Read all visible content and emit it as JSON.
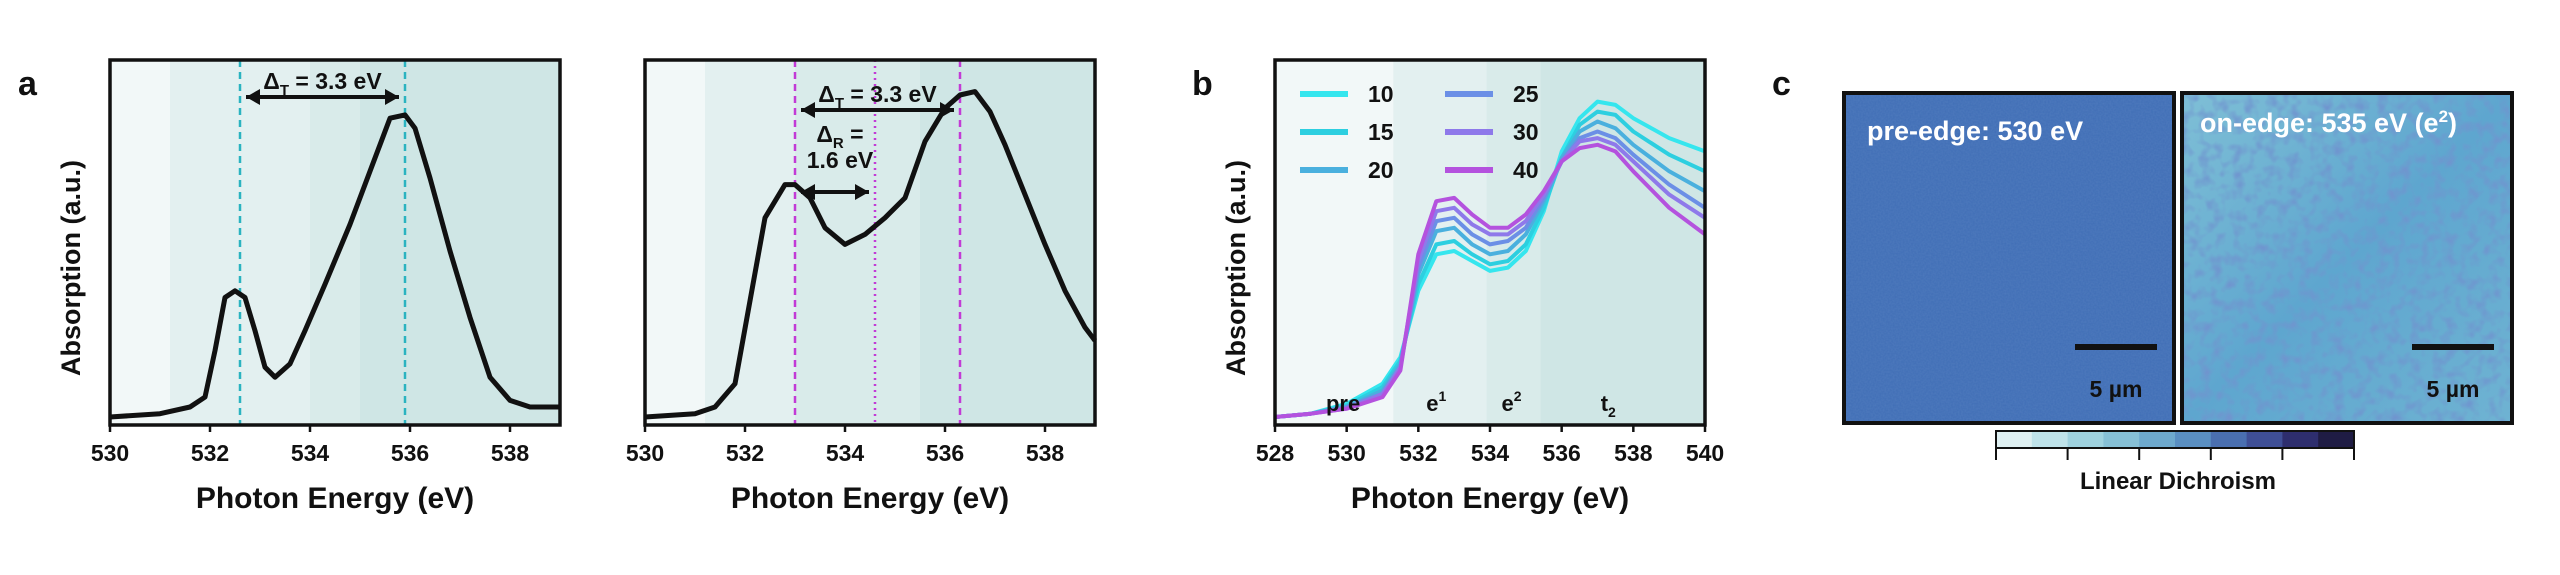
{
  "panel_letters": {
    "a": "a",
    "b": "b",
    "c": "c"
  },
  "colors": {
    "curve": "#111111",
    "teal_marker": "#2bb3c0",
    "magenta_marker": "#c23ad6",
    "bg_light": "#f2f8f8",
    "bg_mid": "#e3f0f0",
    "bg_dark": "#cfe6e5",
    "map_blue": "#3f6db5"
  },
  "chart_data": [
    {
      "id": "a-left",
      "type": "line",
      "xlabel": "Photon Energy (eV)",
      "ylabel": "Absorption (a.u.)",
      "xlim": [
        530,
        539
      ],
      "xticks": [
        530,
        532,
        534,
        536,
        538
      ],
      "ylim": [
        0,
        1
      ],
      "background_bands": [
        [
          530,
          531.2,
          "light"
        ],
        [
          531.2,
          534.0,
          "mid"
        ],
        [
          534.0,
          535.0,
          "mid"
        ],
        [
          535.0,
          539,
          "dark"
        ]
      ],
      "series": [
        {
          "x": [
            530,
            531,
            531.6,
            531.9,
            532.1,
            532.3,
            532.5,
            532.7,
            532.9,
            533.1,
            533.3,
            533.6,
            533.9,
            534.3,
            534.8,
            535.2,
            535.6,
            535.9,
            536.1,
            536.4,
            536.8,
            537.2,
            537.6,
            538.0,
            538.4,
            539
          ],
          "y": [
            0.0,
            0.01,
            0.03,
            0.06,
            0.2,
            0.36,
            0.38,
            0.36,
            0.26,
            0.15,
            0.12,
            0.16,
            0.26,
            0.4,
            0.58,
            0.74,
            0.9,
            0.91,
            0.87,
            0.72,
            0.5,
            0.3,
            0.12,
            0.05,
            0.03,
            0.03
          ]
        }
      ],
      "markers": [
        {
          "x": 532.6,
          "style": "dashed",
          "color": "teal"
        },
        {
          "x": 535.9,
          "style": "dashed",
          "color": "teal"
        }
      ],
      "annotations": [
        {
          "text": "Δ",
          "sub": "T",
          "rest": " = 3.3 eV",
          "from": 532.6,
          "to": 535.9
        }
      ]
    },
    {
      "id": "a-right",
      "type": "line",
      "xlabel": "Photon Energy (eV)",
      "ylabel": "",
      "xlim": [
        530,
        539
      ],
      "xticks": [
        530,
        532,
        534,
        536,
        538
      ],
      "ylim": [
        0,
        1
      ],
      "background_bands": [
        [
          530,
          531.2,
          "light"
        ],
        [
          531.2,
          533.0,
          "mid"
        ],
        [
          533.0,
          535.5,
          "mid"
        ],
        [
          535.5,
          539,
          "dark"
        ]
      ],
      "series": [
        {
          "x": [
            530,
            531,
            531.4,
            531.8,
            532.1,
            532.4,
            532.8,
            533.0,
            533.3,
            533.6,
            534.0,
            534.4,
            534.8,
            535.2,
            535.6,
            536.0,
            536.3,
            536.6,
            536.9,
            537.2,
            537.6,
            538.0,
            538.4,
            538.8,
            539
          ],
          "y": [
            0.0,
            0.01,
            0.03,
            0.1,
            0.35,
            0.6,
            0.7,
            0.7,
            0.66,
            0.57,
            0.52,
            0.55,
            0.6,
            0.66,
            0.83,
            0.93,
            0.97,
            0.98,
            0.92,
            0.82,
            0.67,
            0.52,
            0.38,
            0.27,
            0.23
          ]
        }
      ],
      "markers": [
        {
          "x": 533.0,
          "style": "dashed",
          "color": "magenta"
        },
        {
          "x": 534.6,
          "style": "dotted",
          "color": "magenta"
        },
        {
          "x": 536.3,
          "style": "dashed",
          "color": "magenta"
        }
      ],
      "annotations": [
        {
          "text": "Δ",
          "sub": "T",
          "rest": " = 3.3 eV",
          "from": 533.0,
          "to": 536.3
        },
        {
          "text": "Δ",
          "sub": "R",
          "rest": " =",
          "line2": "1.6 eV",
          "from": 533.0,
          "to": 534.6
        }
      ]
    },
    {
      "id": "b",
      "type": "line",
      "xlabel": "Photon Energy (eV)",
      "ylabel": "Absorption (a.u.)",
      "xlim": [
        528,
        540
      ],
      "xticks": [
        528,
        530,
        532,
        534,
        536,
        538,
        540
      ],
      "ylim": [
        0,
        1
      ],
      "region_labels": [
        {
          "text": "pre",
          "x": 529.9
        },
        {
          "text": "e",
          "sup": "1",
          "x": 532.5
        },
        {
          "text": "e",
          "sup": "2",
          "x": 534.6
        },
        {
          "text": "t",
          "sub": "2",
          "x": 537.3
        }
      ],
      "background_bands": [
        [
          528,
          531.3,
          "light"
        ],
        [
          531.3,
          533.9,
          "mid"
        ],
        [
          533.9,
          535.4,
          "mid"
        ],
        [
          535.4,
          540,
          "dark"
        ]
      ],
      "legend_placement": "top-left",
      "series": [
        {
          "name": "10",
          "color": "#35e6ee",
          "x": [
            528,
            529,
            530,
            531,
            531.5,
            532,
            532.5,
            533,
            533.5,
            534,
            534.5,
            535,
            535.5,
            536,
            536.5,
            537,
            537.5,
            538,
            539,
            540
          ],
          "y": [
            0.0,
            0.01,
            0.04,
            0.1,
            0.18,
            0.38,
            0.49,
            0.5,
            0.47,
            0.44,
            0.45,
            0.5,
            0.62,
            0.8,
            0.9,
            0.95,
            0.94,
            0.9,
            0.84,
            0.8
          ]
        },
        {
          "name": "15",
          "color": "#2dcfe0",
          "x": [
            528,
            529,
            530,
            531,
            531.5,
            532,
            532.5,
            533,
            533.5,
            534,
            534.5,
            535,
            535.5,
            536,
            536.5,
            537,
            537.5,
            538,
            539,
            540
          ],
          "y": [
            0.0,
            0.01,
            0.035,
            0.09,
            0.17,
            0.4,
            0.52,
            0.53,
            0.49,
            0.46,
            0.47,
            0.52,
            0.63,
            0.78,
            0.88,
            0.92,
            0.91,
            0.86,
            0.79,
            0.74
          ]
        },
        {
          "name": "20",
          "color": "#4ab0de",
          "x": [
            528,
            529,
            530,
            531,
            531.5,
            532,
            532.5,
            533,
            533.5,
            534,
            534.5,
            535,
            535.5,
            536,
            536.5,
            537,
            537.5,
            538,
            539,
            540
          ],
          "y": [
            0.0,
            0.01,
            0.03,
            0.08,
            0.16,
            0.43,
            0.56,
            0.57,
            0.52,
            0.49,
            0.5,
            0.55,
            0.65,
            0.78,
            0.86,
            0.89,
            0.87,
            0.82,
            0.74,
            0.68
          ]
        },
        {
          "name": "25",
          "color": "#6b8fe6",
          "x": [
            528,
            529,
            530,
            531,
            531.5,
            532,
            532.5,
            533,
            533.5,
            534,
            534.5,
            535,
            535.5,
            536,
            536.5,
            537,
            537.5,
            538,
            539,
            540
          ],
          "y": [
            0.0,
            0.01,
            0.03,
            0.07,
            0.15,
            0.45,
            0.59,
            0.6,
            0.55,
            0.52,
            0.53,
            0.57,
            0.66,
            0.77,
            0.84,
            0.86,
            0.84,
            0.79,
            0.7,
            0.63
          ]
        },
        {
          "name": "30",
          "color": "#8e79ea",
          "x": [
            528,
            529,
            530,
            531,
            531.5,
            532,
            532.5,
            533,
            533.5,
            534,
            534.5,
            535,
            535.5,
            536,
            536.5,
            537,
            537.5,
            538,
            539,
            540
          ],
          "y": [
            0.0,
            0.01,
            0.025,
            0.07,
            0.15,
            0.47,
            0.62,
            0.63,
            0.58,
            0.55,
            0.55,
            0.59,
            0.67,
            0.77,
            0.83,
            0.84,
            0.82,
            0.77,
            0.67,
            0.6
          ]
        },
        {
          "name": "40",
          "color": "#b452de",
          "x": [
            528,
            529,
            530,
            531,
            531.5,
            532,
            532.5,
            533,
            533.5,
            534,
            534.5,
            535,
            535.5,
            536,
            536.5,
            537,
            537.5,
            538,
            539,
            540
          ],
          "y": [
            0.0,
            0.01,
            0.025,
            0.06,
            0.14,
            0.49,
            0.65,
            0.66,
            0.61,
            0.57,
            0.57,
            0.61,
            0.68,
            0.77,
            0.81,
            0.82,
            0.8,
            0.74,
            0.63,
            0.55
          ]
        }
      ]
    }
  ],
  "panel_c": {
    "images": [
      {
        "title": "pre-edge: 530 eV",
        "scale_label": "5 µm",
        "style": "uniform"
      },
      {
        "title": "on-edge: 535 eV (e",
        "title_sup": "2",
        "title_tail": ")",
        "scale_label": "5 µm",
        "style": "mottled"
      }
    ],
    "colorbar": {
      "label": "Linear Dichroism",
      "colors": [
        "#dff0f2",
        "#bfe3ea",
        "#9fd2df",
        "#86c0d6",
        "#6ea9cd",
        "#5a8fc2",
        "#4a6fb0",
        "#3f4f96",
        "#2e2e6e",
        "#1f1c44"
      ]
    }
  }
}
